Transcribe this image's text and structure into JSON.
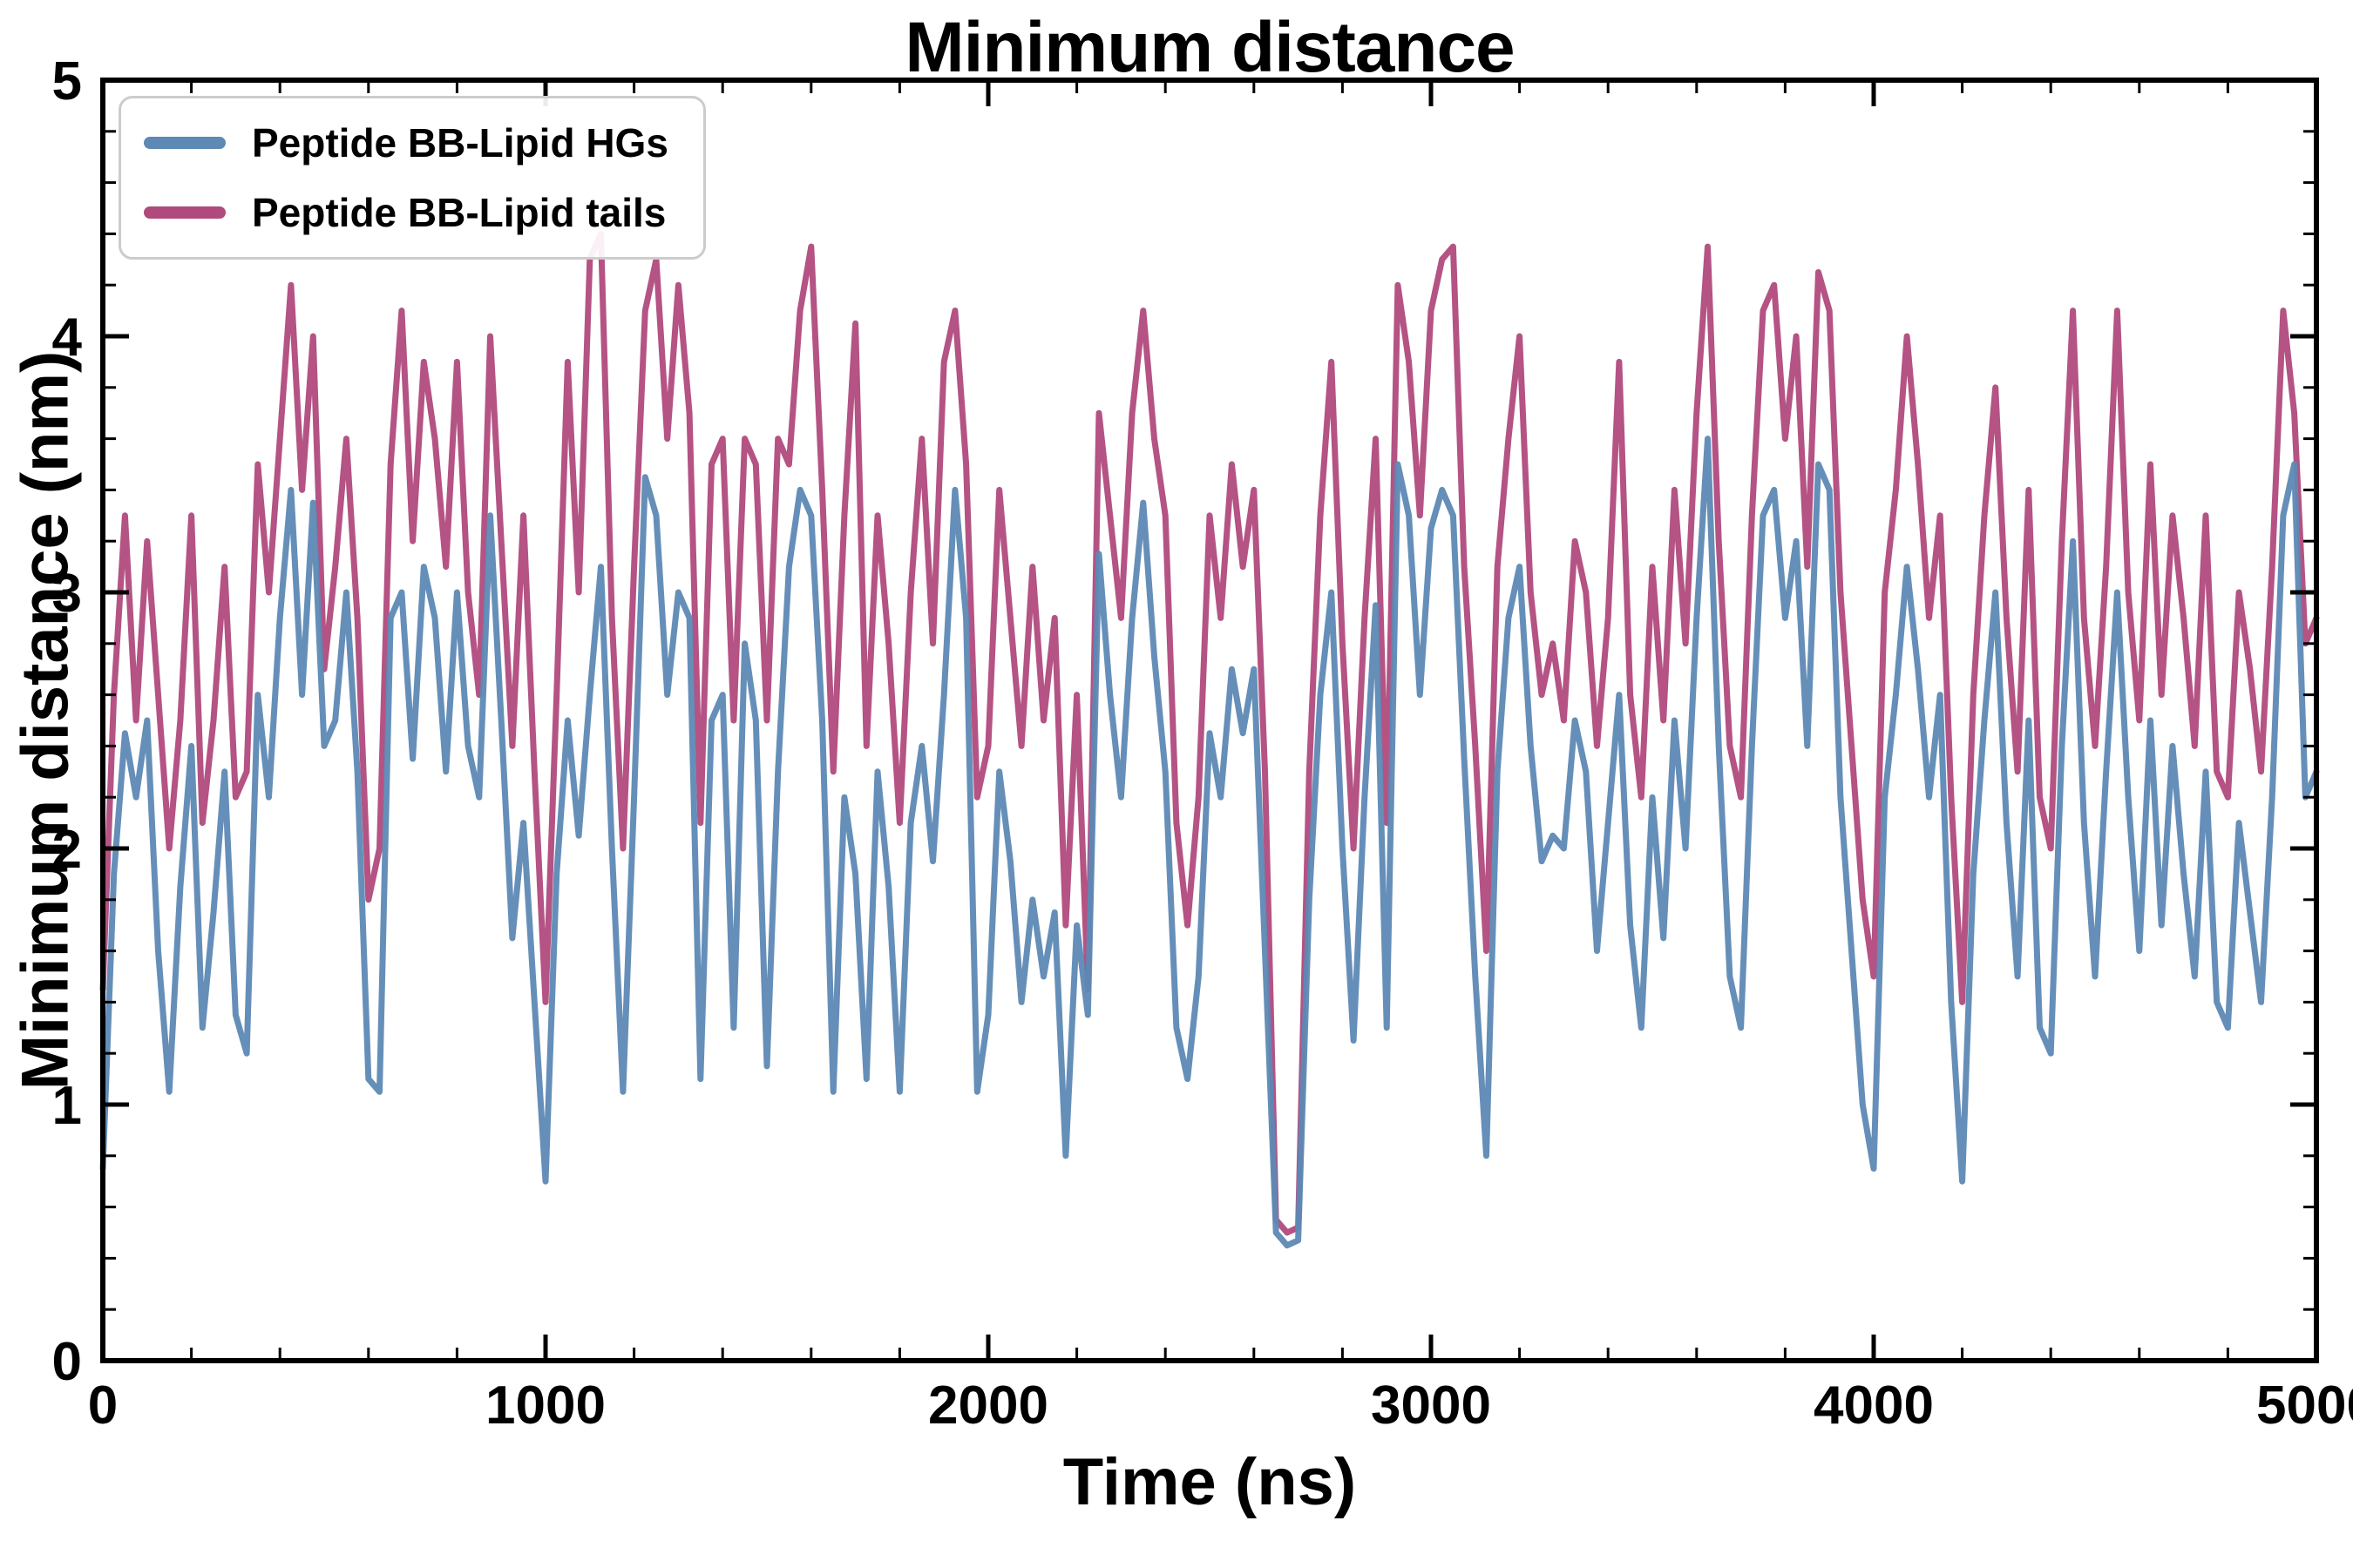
{
  "chart_data": {
    "type": "line",
    "title": "Minimum distance",
    "xlabel": "Time (ns)",
    "ylabel": "Minimum distance (nm)",
    "xlim": [
      0,
      5000
    ],
    "ylim": [
      0,
      5
    ],
    "x_ticks": [
      0,
      1000,
      2000,
      3000,
      4000,
      5000
    ],
    "y_ticks": [
      0,
      1,
      2,
      3,
      4,
      5
    ],
    "x_minor_step": 200,
    "y_minor_step": 0.2,
    "grid": false,
    "legend_position": "upper left",
    "x_start": 0,
    "x_step": 25,
    "series": [
      {
        "name": "Peptide BB-Lipid HGs",
        "color": "#5d89b4",
        "values": [
          0.75,
          1.9,
          2.45,
          2.2,
          2.5,
          1.6,
          1.05,
          1.85,
          2.4,
          1.3,
          1.75,
          2.3,
          1.35,
          1.2,
          2.6,
          2.2,
          2.9,
          3.4,
          2.6,
          3.35,
          2.4,
          2.5,
          3.0,
          2.3,
          1.1,
          1.05,
          2.9,
          3.0,
          2.35,
          3.1,
          2.9,
          2.3,
          3.0,
          2.4,
          2.2,
          3.3,
          2.5,
          1.65,
          2.1,
          1.4,
          0.7,
          1.9,
          2.5,
          2.05,
          2.6,
          3.1,
          2.0,
          1.05,
          2.2,
          3.45,
          3.3,
          2.6,
          3.0,
          2.9,
          1.1,
          2.5,
          2.6,
          1.3,
          2.8,
          2.5,
          1.15,
          2.3,
          3.1,
          3.4,
          3.3,
          2.5,
          1.05,
          2.2,
          1.9,
          1.1,
          2.3,
          1.85,
          1.05,
          2.1,
          2.4,
          1.95,
          2.6,
          3.4,
          2.9,
          1.05,
          1.35,
          2.3,
          1.95,
          1.4,
          1.8,
          1.5,
          1.75,
          0.8,
          1.7,
          1.35,
          3.15,
          2.6,
          2.2,
          2.9,
          3.35,
          2.75,
          2.3,
          1.3,
          1.1,
          1.5,
          2.45,
          2.2,
          2.7,
          2.45,
          2.7,
          1.6,
          0.5,
          0.45,
          0.47,
          1.8,
          2.6,
          3.0,
          2.0,
          1.25,
          2.2,
          2.95,
          1.3,
          3.5,
          3.3,
          2.6,
          3.25,
          3.4,
          3.3,
          2.35,
          1.5,
          0.8,
          2.3,
          2.9,
          3.1,
          2.4,
          1.95,
          2.05,
          2.0,
          2.5,
          2.3,
          1.6,
          2.1,
          2.6,
          1.7,
          1.3,
          2.2,
          1.65,
          2.5,
          2.0,
          2.9,
          3.6,
          2.4,
          1.5,
          1.3,
          2.4,
          3.3,
          3.4,
          2.9,
          3.2,
          2.4,
          3.5,
          3.4,
          2.2,
          1.6,
          1.0,
          0.75,
          2.2,
          2.6,
          3.1,
          2.7,
          2.2,
          2.6,
          1.4,
          0.7,
          1.9,
          2.5,
          3.0,
          2.1,
          1.5,
          2.5,
          1.3,
          1.2,
          2.4,
          3.2,
          2.1,
          1.5,
          2.3,
          3.0,
          2.2,
          1.6,
          2.5,
          1.7,
          2.4,
          1.9,
          1.5,
          2.3,
          1.4,
          1.3,
          2.1,
          1.75,
          1.4,
          2.2,
          3.3,
          3.5,
          2.2,
          2.3
        ]
      },
      {
        "name": "Peptide BB-Lipid tails",
        "color": "#b04a7d",
        "values": [
          1.45,
          2.6,
          3.3,
          2.5,
          3.2,
          2.6,
          2.0,
          2.5,
          3.3,
          2.1,
          2.5,
          3.1,
          2.2,
          2.3,
          3.5,
          3.0,
          3.6,
          4.2,
          3.4,
          4.0,
          2.7,
          3.1,
          3.6,
          2.9,
          1.8,
          2.0,
          3.5,
          4.1,
          3.2,
          3.9,
          3.6,
          3.1,
          3.9,
          3.0,
          2.6,
          4.0,
          3.2,
          2.4,
          3.3,
          2.3,
          1.4,
          2.6,
          3.9,
          3.0,
          4.3,
          4.4,
          2.9,
          2.0,
          3.1,
          4.1,
          4.3,
          3.6,
          4.2,
          3.7,
          2.1,
          3.5,
          3.6,
          2.5,
          3.6,
          3.5,
          2.5,
          3.6,
          3.5,
          4.1,
          4.35,
          3.4,
          2.3,
          3.3,
          4.05,
          2.4,
          3.3,
          2.8,
          2.1,
          3.0,
          3.6,
          2.8,
          3.9,
          4.1,
          3.5,
          2.2,
          2.4,
          3.4,
          2.9,
          2.4,
          3.1,
          2.5,
          2.9,
          1.7,
          2.6,
          1.45,
          3.7,
          3.3,
          2.9,
          3.7,
          4.1,
          3.6,
          3.3,
          2.1,
          1.7,
          2.2,
          3.3,
          2.9,
          3.5,
          3.1,
          3.4,
          2.3,
          0.55,
          0.5,
          0.52,
          2.3,
          3.3,
          3.9,
          2.8,
          2.0,
          2.9,
          3.6,
          2.1,
          4.2,
          3.9,
          3.3,
          4.1,
          4.3,
          4.35,
          3.1,
          2.4,
          1.6,
          3.1,
          3.6,
          4.0,
          3.0,
          2.6,
          2.8,
          2.5,
          3.2,
          3.0,
          2.4,
          2.9,
          3.9,
          2.6,
          2.2,
          3.1,
          2.5,
          3.4,
          2.8,
          3.7,
          4.35,
          3.2,
          2.4,
          2.2,
          3.3,
          4.1,
          4.2,
          3.6,
          4.0,
          3.1,
          4.25,
          4.1,
          3.0,
          2.4,
          1.8,
          1.5,
          3.0,
          3.4,
          4.0,
          3.5,
          2.9,
          3.3,
          2.2,
          1.4,
          2.6,
          3.3,
          3.8,
          2.9,
          2.3,
          3.4,
          2.2,
          2.0,
          3.2,
          4.1,
          2.9,
          2.4,
          3.1,
          4.1,
          3.0,
          2.5,
          3.5,
          2.6,
          3.3,
          2.9,
          2.4,
          3.3,
          2.3,
          2.2,
          3.0,
          2.7,
          2.3,
          3.1,
          4.1,
          3.7,
          2.8,
          2.9
        ]
      }
    ]
  }
}
